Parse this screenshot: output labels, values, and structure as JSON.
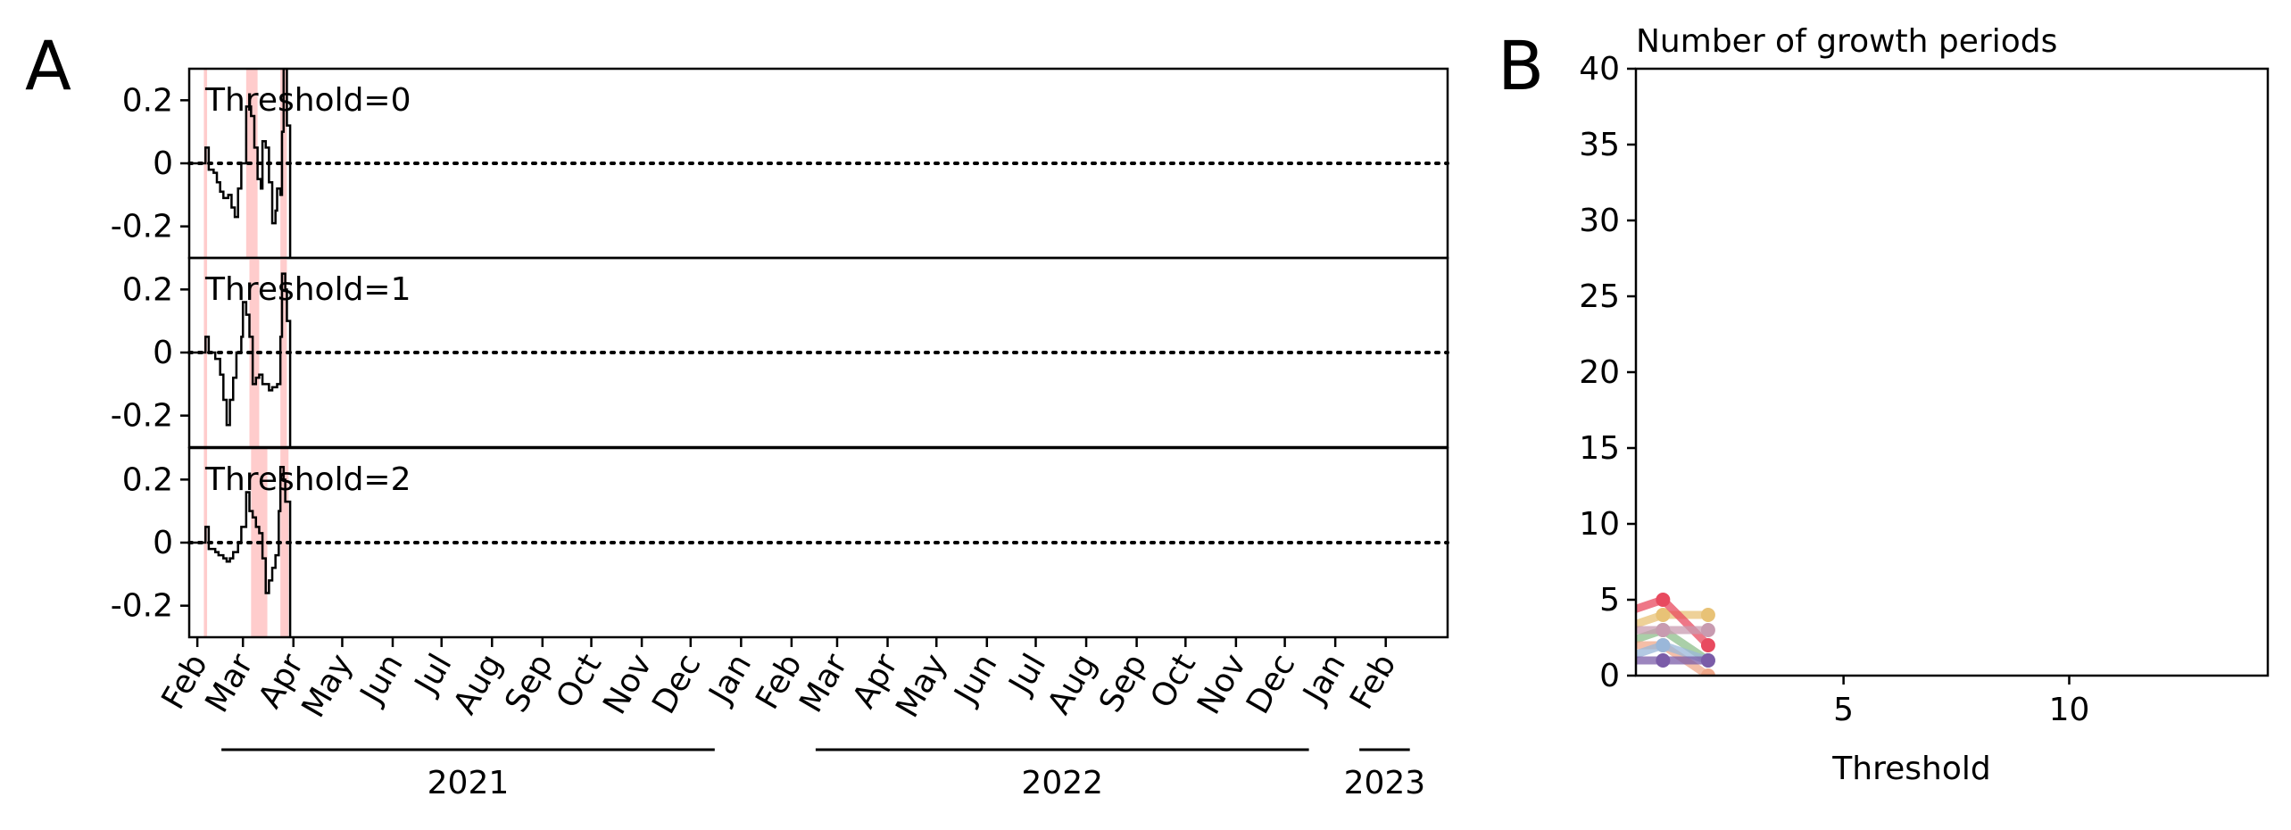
{
  "panel_labels": {
    "a": "A",
    "b": "B"
  },
  "colors": {
    "shade": "#ffcccc",
    "line": "#000000"
  },
  "chart_data": [
    {
      "type": "step-line",
      "panel": "A",
      "ylim": [
        -0.3,
        0.3
      ],
      "yticks": [
        0.2,
        0,
        -0.2
      ],
      "ytick_labels": [
        "0.2",
        "0",
        "-0.2"
      ],
      "xlim": [
        "2021-01-27",
        "2023-03-11"
      ],
      "month_ticks": [
        "2021-02-01",
        "2021-03-01",
        "2021-04-01",
        "2021-05-01",
        "2021-06-01",
        "2021-07-01",
        "2021-08-01",
        "2021-09-01",
        "2021-10-01",
        "2021-11-01",
        "2021-12-01",
        "2022-01-01",
        "2022-02-01",
        "2022-03-01",
        "2022-04-01",
        "2022-05-01",
        "2022-06-01",
        "2022-07-01",
        "2022-08-01",
        "2022-09-01",
        "2022-10-01",
        "2022-11-01",
        "2022-12-01",
        "2023-01-01",
        "2023-02-01"
      ],
      "month_labels": [
        "Feb",
        "Mar",
        "Apr",
        "May",
        "Jun",
        "Jul",
        "Aug",
        "Sep",
        "Oct",
        "Nov",
        "Dec",
        "Jan",
        "Feb",
        "Mar",
        "Apr",
        "May",
        "Jun",
        "Jul",
        "Aug",
        "Sep",
        "Oct",
        "Nov",
        "Dec",
        "Jan",
        "Feb"
      ],
      "years": [
        {
          "label": "2021",
          "from": "2021-02-01",
          "to": "2021-12-01"
        },
        {
          "label": "2022",
          "from": "2022-02-01",
          "to": "2022-12-01"
        },
        {
          "label": "2023",
          "from": "2023-01-01",
          "to": "2023-02-01"
        }
      ],
      "reference_line": 0,
      "subplots": [
        {
          "label": "Threshold=0",
          "shaded": [
            [
              "2021-02-05",
              "2021-02-07"
            ],
            [
              "2021-03-03",
              "2021-03-10"
            ],
            [
              "2021-03-24",
              "2021-03-28"
            ]
          ],
          "points": [
            [
              "2021-01-27",
              0
            ],
            [
              "2021-02-06",
              0.05
            ],
            [
              "2021-02-08",
              -0.02
            ],
            [
              "2021-02-11",
              -0.03
            ],
            [
              "2021-02-13",
              -0.06
            ],
            [
              "2021-02-15",
              -0.09
            ],
            [
              "2021-02-17",
              -0.11
            ],
            [
              "2021-02-20",
              -0.1
            ],
            [
              "2021-02-22",
              -0.14
            ],
            [
              "2021-02-24",
              -0.17
            ],
            [
              "2021-02-26",
              -0.08
            ],
            [
              "2021-02-28",
              0
            ],
            [
              "2021-03-03",
              0.18
            ],
            [
              "2021-03-06",
              0.15
            ],
            [
              "2021-03-08",
              0.05
            ],
            [
              "2021-03-10",
              -0.05
            ],
            [
              "2021-03-12",
              -0.08
            ],
            [
              "2021-03-13",
              0.07
            ],
            [
              "2021-03-15",
              0.05
            ],
            [
              "2021-03-17",
              -0.06
            ],
            [
              "2021-03-19",
              -0.19
            ],
            [
              "2021-03-21",
              -0.15
            ],
            [
              "2021-03-22",
              -0.08
            ],
            [
              "2021-03-24",
              -0.1
            ],
            [
              "2021-03-25",
              0.1
            ],
            [
              "2021-03-26",
              0.3
            ],
            [
              "2021-03-28",
              0.12
            ],
            [
              "2021-03-30",
              -0.3
            ]
          ]
        },
        {
          "label": "Threshold=1",
          "shaded": [
            [
              "2021-02-05",
              "2021-02-07"
            ],
            [
              "2021-03-05",
              "2021-03-11"
            ],
            [
              "2021-03-24",
              "2021-03-28"
            ]
          ],
          "points": [
            [
              "2021-01-27",
              0
            ],
            [
              "2021-02-06",
              0.05
            ],
            [
              "2021-02-08",
              0
            ],
            [
              "2021-02-12",
              -0.02
            ],
            [
              "2021-02-15",
              -0.07
            ],
            [
              "2021-02-17",
              -0.15
            ],
            [
              "2021-02-19",
              -0.23
            ],
            [
              "2021-02-21",
              -0.15
            ],
            [
              "2021-02-23",
              -0.08
            ],
            [
              "2021-02-25",
              0
            ],
            [
              "2021-02-28",
              0.05
            ],
            [
              "2021-03-01",
              0.16
            ],
            [
              "2021-03-03",
              0.12
            ],
            [
              "2021-03-05",
              0.05
            ],
            [
              "2021-03-07",
              -0.1
            ],
            [
              "2021-03-09",
              -0.08
            ],
            [
              "2021-03-11",
              -0.07
            ],
            [
              "2021-03-13",
              -0.1
            ],
            [
              "2021-03-15",
              -0.1
            ],
            [
              "2021-03-17",
              -0.12
            ],
            [
              "2021-03-19",
              -0.11
            ],
            [
              "2021-03-22",
              -0.1
            ],
            [
              "2021-03-24",
              0.05
            ],
            [
              "2021-03-25",
              0.25
            ],
            [
              "2021-03-27",
              0.2
            ],
            [
              "2021-03-28",
              0.1
            ],
            [
              "2021-03-30",
              -0.3
            ]
          ]
        },
        {
          "label": "Threshold=2",
          "shaded": [
            [
              "2021-02-05",
              "2021-02-07"
            ],
            [
              "2021-03-06",
              "2021-03-16"
            ],
            [
              "2021-03-24",
              "2021-03-29"
            ]
          ],
          "points": [
            [
              "2021-01-27",
              0
            ],
            [
              "2021-02-06",
              0.05
            ],
            [
              "2021-02-08",
              -0.02
            ],
            [
              "2021-02-12",
              -0.03
            ],
            [
              "2021-02-14",
              -0.04
            ],
            [
              "2021-02-17",
              -0.05
            ],
            [
              "2021-02-19",
              -0.06
            ],
            [
              "2021-02-21",
              -0.05
            ],
            [
              "2021-02-23",
              -0.03
            ],
            [
              "2021-02-26",
              0
            ],
            [
              "2021-02-28",
              0.05
            ],
            [
              "2021-03-03",
              0.16
            ],
            [
              "2021-03-05",
              0.1
            ],
            [
              "2021-03-07",
              0.08
            ],
            [
              "2021-03-09",
              0.05
            ],
            [
              "2021-03-11",
              0.03
            ],
            [
              "2021-03-13",
              -0.05
            ],
            [
              "2021-03-15",
              -0.16
            ],
            [
              "2021-03-17",
              -0.12
            ],
            [
              "2021-03-19",
              -0.08
            ],
            [
              "2021-03-21",
              -0.04
            ],
            [
              "2021-03-23",
              0.1
            ],
            [
              "2021-03-24",
              0.24
            ],
            [
              "2021-03-26",
              0.2
            ],
            [
              "2021-03-27",
              0.13
            ],
            [
              "2021-03-30",
              -0.3
            ]
          ]
        }
      ]
    },
    {
      "type": "line",
      "panel": "B",
      "title": "Number of growth periods",
      "xlabel": "Threshold",
      "ylabel": "",
      "xlim": [
        0.4,
        14.4
      ],
      "ylim": [
        0,
        40
      ],
      "xticks": [
        5,
        10
      ],
      "yticks": [
        0,
        5,
        10,
        15,
        20,
        25,
        30,
        35,
        40
      ],
      "x": [
        0,
        1,
        2
      ],
      "series": [
        {
          "color": "#e8c276",
          "values": [
            3,
            4,
            4
          ]
        },
        {
          "color": "#e84a5f",
          "values": [
            4,
            5,
            2
          ]
        },
        {
          "color": "#8dbf8b",
          "values": [
            2,
            3,
            1
          ]
        },
        {
          "color": "#c89bb0",
          "values": [
            3,
            3,
            3
          ]
        },
        {
          "color": "#f0a88a",
          "values": [
            2,
            2,
            0
          ]
        },
        {
          "color": "#9ab7d9",
          "values": [
            1,
            2,
            1
          ]
        },
        {
          "color": "#7b5ca8",
          "values": [
            1,
            1,
            1
          ]
        }
      ]
    }
  ]
}
